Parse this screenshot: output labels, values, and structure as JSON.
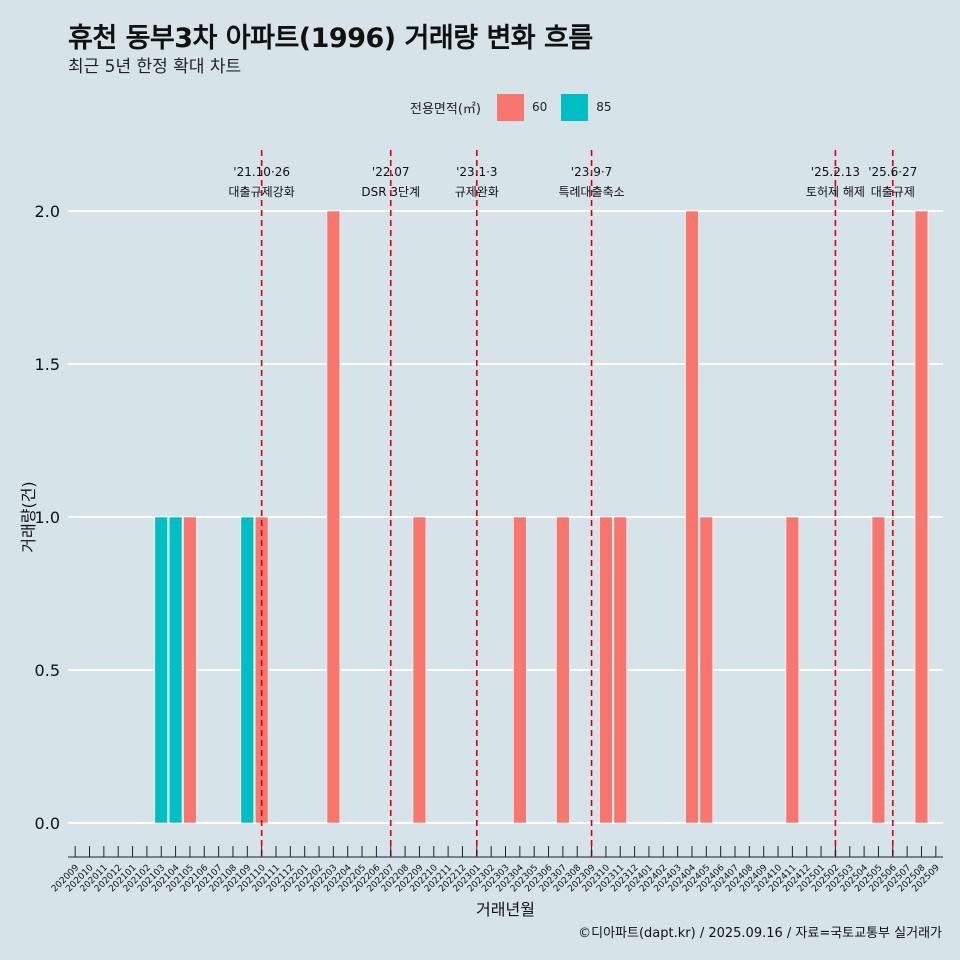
{
  "header": {
    "title": "휴천 동부3차 아파트(1996) 거래량 변화 흐름",
    "subtitle": "최근 5년 한정 확대 차트"
  },
  "legend": {
    "title": "전용면적(㎡)",
    "items": [
      {
        "label": "60",
        "color": "#F8766D"
      },
      {
        "label": "85",
        "color": "#00BFC4"
      }
    ]
  },
  "caption": "©디아파트(dapt.kr) / 2025.09.16 / 자료=국토교통부 실거래가",
  "chart_data": {
    "type": "bar",
    "title": "휴천 동부3차 아파트(1996) 거래량 변화 흐름",
    "subtitle": "최근 5년 한정 확대 차트",
    "xlabel": "거래년월",
    "ylabel": "거래량(건)",
    "ylim": [
      0,
      2
    ],
    "yticks": [
      "0.0",
      "0.5",
      "1.0",
      "1.5",
      "2.0"
    ],
    "grid": true,
    "legend_position": "top",
    "categories": [
      "202009",
      "202010",
      "202011",
      "202012",
      "202101",
      "202102",
      "202103",
      "202104",
      "202105",
      "202106",
      "202107",
      "202108",
      "202109",
      "202110",
      "202111",
      "202112",
      "202201",
      "202202",
      "202203",
      "202204",
      "202205",
      "202206",
      "202207",
      "202208",
      "202209",
      "202210",
      "202211",
      "202212",
      "202301",
      "202302",
      "202303",
      "202304",
      "202305",
      "202306",
      "202307",
      "202308",
      "202309",
      "202310",
      "202311",
      "202312",
      "202401",
      "202402",
      "202403",
      "202404",
      "202405",
      "202406",
      "202407",
      "202408",
      "202409",
      "202410",
      "202411",
      "202412",
      "202501",
      "202502",
      "202503",
      "202504",
      "202505",
      "202506",
      "202507",
      "202508",
      "202509"
    ],
    "series": [
      {
        "name": "60",
        "color": "#F8766D",
        "values": [
          0,
          0,
          0,
          0,
          0,
          0,
          0,
          0,
          1,
          0,
          0,
          0,
          0,
          1,
          0,
          0,
          0,
          0,
          2,
          0,
          0,
          0,
          0,
          0,
          1,
          0,
          0,
          0,
          0,
          0,
          0,
          1,
          0,
          0,
          1,
          0,
          0,
          1,
          1,
          0,
          0,
          0,
          0,
          2,
          1,
          0,
          0,
          0,
          0,
          0,
          1,
          0,
          0,
          0,
          0,
          0,
          1,
          0,
          0,
          2,
          0
        ]
      },
      {
        "name": "85",
        "color": "#00BFC4",
        "values": [
          0,
          0,
          0,
          0,
          0,
          0,
          1,
          1,
          0,
          0,
          0,
          0,
          1,
          0,
          0,
          0,
          0,
          0,
          0,
          0,
          0,
          0,
          0,
          0,
          0,
          0,
          0,
          0,
          0,
          0,
          0,
          0,
          0,
          0,
          0,
          0,
          0,
          0,
          0,
          0,
          0,
          0,
          0,
          0,
          0,
          0,
          0,
          0,
          0,
          0,
          0,
          0,
          0,
          0,
          0,
          0,
          0,
          0,
          0,
          0,
          0
        ]
      }
    ],
    "annotations": [
      {
        "x": "202110",
        "date": "'21.10·26",
        "label": "대출규제강화"
      },
      {
        "x": "202207",
        "date": "'22.07",
        "label": "DSR 3단계"
      },
      {
        "x": "202301",
        "date": "'23.1·3",
        "label": "규제완화"
      },
      {
        "x": "202309",
        "date": "'23.9·7",
        "label": "특례대출축소"
      },
      {
        "x": "202502",
        "date": "'25.2.13",
        "label": "토허제 해제"
      },
      {
        "x": "202506",
        "date": "'25.6·27",
        "label": "대출규제"
      }
    ]
  }
}
